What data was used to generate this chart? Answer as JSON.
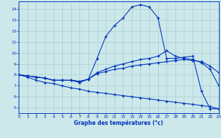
{
  "bg_color": "#cce8ea",
  "grid_color": "#aacccc",
  "line_color": "#0033bb",
  "xlabel": "Graphe des températures (°c)",
  "xlim": [
    0,
    23
  ],
  "ylim": [
    4.5,
    14.7
  ],
  "xticks": [
    0,
    1,
    2,
    3,
    4,
    5,
    6,
    7,
    8,
    9,
    10,
    11,
    12,
    13,
    14,
    15,
    16,
    17,
    18,
    19,
    20,
    21,
    22,
    23
  ],
  "yticks": [
    5,
    6,
    7,
    8,
    9,
    10,
    11,
    12,
    13,
    14
  ],
  "curve1_y": [
    8.0,
    7.9,
    7.8,
    7.7,
    7.5,
    7.5,
    7.5,
    7.3,
    7.6,
    9.5,
    11.5,
    12.5,
    13.2,
    14.2,
    14.4,
    14.2,
    13.2,
    9.5,
    9.5,
    9.6,
    9.7,
    6.5,
    4.9,
    4.9
  ],
  "curve2_y": [
    8.0,
    7.9,
    7.8,
    7.7,
    7.5,
    7.5,
    7.5,
    7.4,
    7.6,
    8.2,
    8.5,
    8.8,
    9.0,
    9.2,
    9.4,
    9.5,
    9.7,
    10.2,
    9.7,
    9.5,
    9.4,
    9.1,
    8.5,
    7.0
  ],
  "curve3_y": [
    8.0,
    7.9,
    7.8,
    7.7,
    7.5,
    7.5,
    7.5,
    7.4,
    7.6,
    8.1,
    8.3,
    8.5,
    8.6,
    8.8,
    8.9,
    9.0,
    9.1,
    9.2,
    9.3,
    9.4,
    9.3,
    9.2,
    8.8,
    8.2
  ],
  "curve4_y": [
    8.0,
    7.8,
    7.5,
    7.3,
    7.2,
    7.0,
    6.8,
    6.7,
    6.5,
    6.4,
    6.3,
    6.2,
    6.1,
    6.0,
    5.9,
    5.8,
    5.7,
    5.6,
    5.5,
    5.4,
    5.3,
    5.2,
    5.1,
    4.9
  ]
}
